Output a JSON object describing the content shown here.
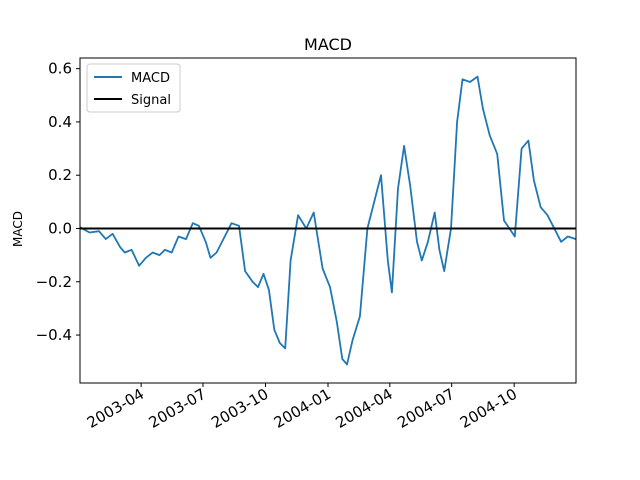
{
  "chart_data": {
    "type": "line",
    "title": "MACD",
    "xlabel": "",
    "ylabel": "MACD",
    "x_range": [
      "2003-01-01",
      "2004-12-31"
    ],
    "ylim": [
      -0.58,
      0.64
    ],
    "grid": false,
    "legend_position": "top-left",
    "x_ticks": [
      "2003-04",
      "2003-07",
      "2003-10",
      "2004-01",
      "2004-04",
      "2004-07",
      "2004-10"
    ],
    "y_ticks": [
      -0.4,
      -0.2,
      0.0,
      0.2,
      0.4,
      0.6
    ],
    "y_tick_labels": [
      "−0.4",
      "−0.2",
      "0.0",
      "0.2",
      "0.4",
      "0.6"
    ],
    "series": [
      {
        "name": "MACD",
        "color": "#1f77b4",
        "points": [
          [
            "2003-01-01",
            0.005
          ],
          [
            "2003-01-15",
            -0.015
          ],
          [
            "2003-01-29",
            -0.01
          ],
          [
            "2003-02-08",
            -0.04
          ],
          [
            "2003-02-18",
            -0.02
          ],
          [
            "2003-03-01",
            -0.07
          ],
          [
            "2003-03-08",
            -0.09
          ],
          [
            "2003-03-18",
            -0.08
          ],
          [
            "2003-03-29",
            -0.14
          ],
          [
            "2003-04-08",
            -0.11
          ],
          [
            "2003-04-18",
            -0.09
          ],
          [
            "2003-04-28",
            -0.1
          ],
          [
            "2003-05-06",
            -0.08
          ],
          [
            "2003-05-16",
            -0.09
          ],
          [
            "2003-05-26",
            -0.03
          ],
          [
            "2003-06-06",
            -0.04
          ],
          [
            "2003-06-16",
            0.02
          ],
          [
            "2003-06-25",
            0.01
          ],
          [
            "2003-07-05",
            -0.05
          ],
          [
            "2003-07-12",
            -0.11
          ],
          [
            "2003-07-21",
            -0.09
          ],
          [
            "2003-07-31",
            -0.04
          ],
          [
            "2003-08-12",
            0.02
          ],
          [
            "2003-08-23",
            0.01
          ],
          [
            "2003-09-01",
            -0.16
          ],
          [
            "2003-09-12",
            -0.2
          ],
          [
            "2003-09-20",
            -0.22
          ],
          [
            "2003-09-28",
            -0.17
          ],
          [
            "2003-10-06",
            -0.23
          ],
          [
            "2003-10-14",
            -0.38
          ],
          [
            "2003-10-22",
            -0.43
          ],
          [
            "2003-10-30",
            -0.45
          ],
          [
            "2003-11-07",
            -0.12
          ],
          [
            "2003-11-18",
            0.05
          ],
          [
            "2003-11-30",
            0.0
          ],
          [
            "2003-12-11",
            0.06
          ],
          [
            "2003-12-24",
            -0.15
          ],
          [
            "2004-01-04",
            -0.22
          ],
          [
            "2004-01-14",
            -0.35
          ],
          [
            "2004-01-22",
            -0.49
          ],
          [
            "2004-01-29",
            -0.51
          ],
          [
            "2004-02-06",
            -0.42
          ],
          [
            "2004-02-17",
            -0.33
          ],
          [
            "2004-02-28",
            0.0
          ],
          [
            "2004-03-09",
            0.1
          ],
          [
            "2004-03-19",
            0.2
          ],
          [
            "2004-03-29",
            -0.12
          ],
          [
            "2004-04-04",
            -0.24
          ],
          [
            "2004-04-13",
            0.15
          ],
          [
            "2004-04-22",
            0.31
          ],
          [
            "2004-05-01",
            0.16
          ],
          [
            "2004-05-11",
            -0.05
          ],
          [
            "2004-05-18",
            -0.12
          ],
          [
            "2004-05-27",
            -0.05
          ],
          [
            "2004-06-06",
            0.06
          ],
          [
            "2004-06-13",
            -0.08
          ],
          [
            "2004-06-20",
            -0.16
          ],
          [
            "2004-06-30",
            0.0
          ],
          [
            "2004-07-09",
            0.4
          ],
          [
            "2004-07-17",
            0.56
          ],
          [
            "2004-07-28",
            0.55
          ],
          [
            "2004-08-08",
            0.57
          ],
          [
            "2004-08-16",
            0.45
          ],
          [
            "2004-08-26",
            0.35
          ],
          [
            "2004-09-06",
            0.28
          ],
          [
            "2004-09-16",
            0.03
          ],
          [
            "2004-09-24",
            0.0
          ],
          [
            "2004-10-02",
            -0.03
          ],
          [
            "2004-10-12",
            0.3
          ],
          [
            "2004-10-22",
            0.33
          ],
          [
            "2004-10-30",
            0.18
          ],
          [
            "2004-11-09",
            0.08
          ],
          [
            "2004-11-19",
            0.05
          ],
          [
            "2004-11-29",
            0.0
          ],
          [
            "2004-12-09",
            -0.05
          ],
          [
            "2004-12-19",
            -0.03
          ],
          [
            "2004-12-31",
            -0.04
          ]
        ]
      },
      {
        "name": "Signal",
        "color": "#000000",
        "points": [
          [
            "2003-01-01",
            0.0
          ],
          [
            "2004-12-31",
            0.0
          ]
        ]
      }
    ]
  }
}
